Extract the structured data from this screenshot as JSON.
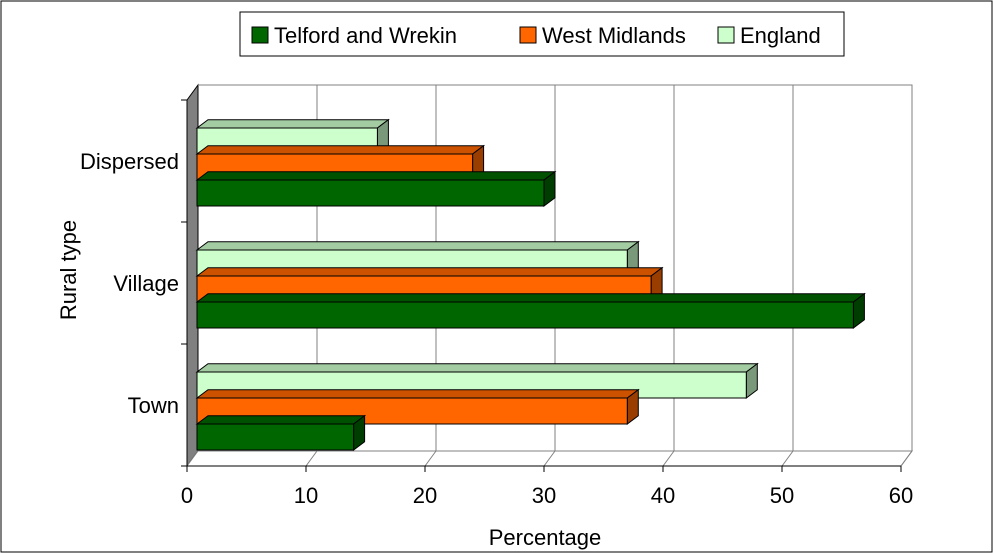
{
  "chart_data": {
    "type": "bar",
    "orientation": "horizontal",
    "style": "3d",
    "title": "",
    "xlabel": "Percentage",
    "ylabel": "Rural type",
    "xlim": [
      0,
      60
    ],
    "xticks": [
      "0",
      "10",
      "20",
      "30",
      "40",
      "50",
      "60"
    ],
    "grid": true,
    "legend_position": "top",
    "categories": [
      "Dispersed",
      "Village",
      "Town"
    ],
    "series": [
      {
        "name": "England",
        "values": [
          16,
          37,
          47
        ],
        "color": "#ccffcc"
      },
      {
        "name": "West Midlands",
        "values": [
          24,
          39,
          37
        ],
        "color": "#ff6600"
      },
      {
        "name": "Telford and Wrekin",
        "values": [
          30,
          56,
          14
        ],
        "color": "#006600"
      }
    ],
    "legend_order": [
      "Telford and Wrekin",
      "West Midlands",
      "England"
    ]
  }
}
